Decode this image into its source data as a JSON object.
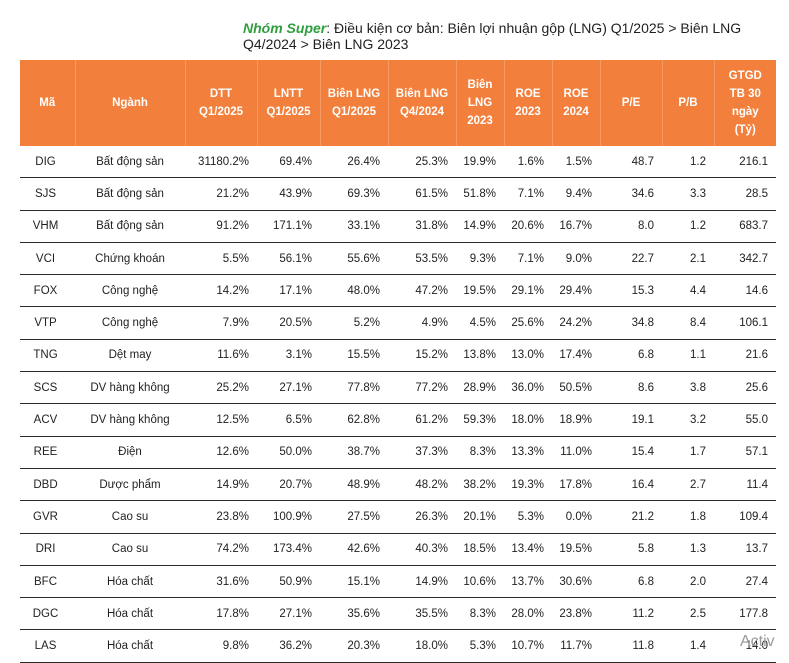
{
  "caption": {
    "group": "Nhóm Super",
    "text": ": Điều kiện cơ bản: Biên lợi nhuận gộp (LNG) Q1/2025 > Biên LNG Q4/2024 > Biên LNG 2023"
  },
  "header": {
    "cols": [
      [
        "Mã"
      ],
      [
        "Ngành"
      ],
      [
        "DTT",
        "Q1/2025"
      ],
      [
        "LNTT",
        "Q1/2025"
      ],
      [
        "Biên LNG",
        "Q1/2025"
      ],
      [
        "Biên LNG",
        "Q4/2024"
      ],
      [
        "Biên",
        "LNG",
        "2023"
      ],
      [
        "ROE",
        "2023"
      ],
      [
        "ROE",
        "2024"
      ],
      [
        "P/E"
      ],
      [
        "P/B"
      ],
      [
        "GTGD",
        "TB 30",
        "ngày",
        "(Tỷ)"
      ]
    ]
  },
  "rows": [
    [
      "DIG",
      "Bất động sản",
      "31180.2%",
      "69.4%",
      "26.4%",
      "25.3%",
      "19.9%",
      "1.6%",
      "1.5%",
      "48.7",
      "1.2",
      "216.1"
    ],
    [
      "SJS",
      "Bất động sản",
      "21.2%",
      "43.9%",
      "69.3%",
      "61.5%",
      "51.8%",
      "7.1%",
      "9.4%",
      "34.6",
      "3.3",
      "28.5"
    ],
    [
      "VHM",
      "Bất động sản",
      "91.2%",
      "171.1%",
      "33.1%",
      "31.8%",
      "14.9%",
      "20.6%",
      "16.7%",
      "8.0",
      "1.2",
      "683.7"
    ],
    [
      "VCI",
      "Chứng khoán",
      "5.5%",
      "56.1%",
      "55.6%",
      "53.5%",
      "9.3%",
      "7.1%",
      "9.0%",
      "22.7",
      "2.1",
      "342.7"
    ],
    [
      "FOX",
      "Công nghệ",
      "14.2%",
      "17.1%",
      "48.0%",
      "47.2%",
      "19.5%",
      "29.1%",
      "29.4%",
      "15.3",
      "4.4",
      "14.6"
    ],
    [
      "VTP",
      "Công nghệ",
      "7.9%",
      "20.5%",
      "5.2%",
      "4.9%",
      "4.5%",
      "25.6%",
      "24.2%",
      "34.8",
      "8.4",
      "106.1"
    ],
    [
      "TNG",
      "Dệt may",
      "11.6%",
      "3.1%",
      "15.5%",
      "15.2%",
      "13.8%",
      "13.0%",
      "17.4%",
      "6.8",
      "1.1",
      "21.6"
    ],
    [
      "SCS",
      "DV hàng không",
      "25.2%",
      "27.1%",
      "77.8%",
      "77.2%",
      "28.9%",
      "36.0%",
      "50.5%",
      "8.6",
      "3.8",
      "25.6"
    ],
    [
      "ACV",
      "DV hàng không",
      "12.5%",
      "6.5%",
      "62.8%",
      "61.2%",
      "59.3%",
      "18.0%",
      "18.9%",
      "19.1",
      "3.2",
      "55.0"
    ],
    [
      "REE",
      "Điện",
      "12.6%",
      "50.0%",
      "38.7%",
      "37.3%",
      "8.3%",
      "13.3%",
      "11.0%",
      "15.4",
      "1.7",
      "57.1"
    ],
    [
      "DBD",
      "Dược phẩm",
      "14.9%",
      "20.7%",
      "48.9%",
      "48.2%",
      "38.2%",
      "19.3%",
      "17.8%",
      "16.4",
      "2.7",
      "11.4"
    ],
    [
      "GVR",
      "Cao su",
      "23.8%",
      "100.9%",
      "27.5%",
      "26.3%",
      "20.1%",
      "5.3%",
      "0.0%",
      "21.2",
      "1.8",
      "109.4"
    ],
    [
      "DRI",
      "Cao su",
      "74.2%",
      "173.4%",
      "42.6%",
      "40.3%",
      "18.5%",
      "13.4%",
      "19.5%",
      "5.8",
      "1.3",
      "13.7"
    ],
    [
      "BFC",
      "Hóa chất",
      "31.6%",
      "50.9%",
      "15.1%",
      "14.9%",
      "10.6%",
      "13.7%",
      "30.6%",
      "6.8",
      "2.0",
      "27.4"
    ],
    [
      "DGC",
      "Hóa chất",
      "17.8%",
      "27.1%",
      "35.6%",
      "35.5%",
      "8.3%",
      "28.0%",
      "23.8%",
      "11.2",
      "2.5",
      "177.8"
    ],
    [
      "LAS",
      "Hóa chất",
      "9.8%",
      "36.2%",
      "20.3%",
      "18.0%",
      "5.3%",
      "10.7%",
      "11.7%",
      "11.8",
      "1.4",
      "14.0"
    ]
  ],
  "watermark": "Activ"
}
